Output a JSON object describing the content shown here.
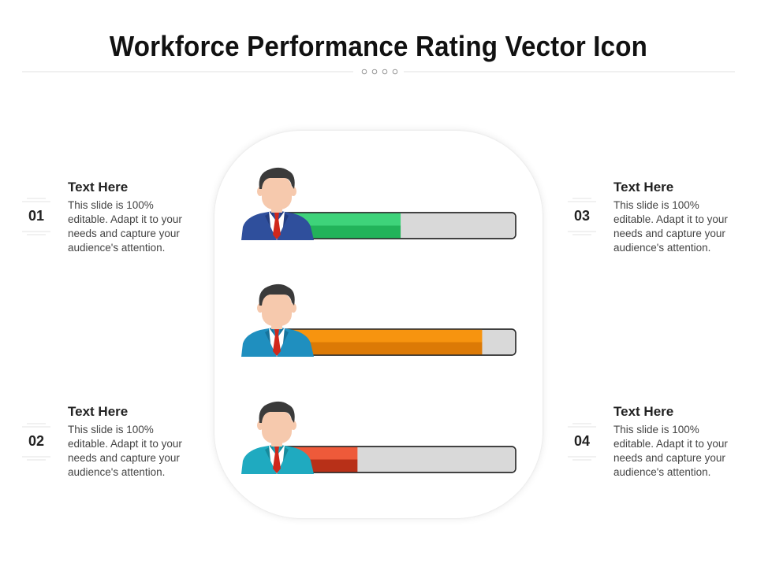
{
  "slide": {
    "title": "Workforce Performance Rating Vector Icon"
  },
  "items": [
    {
      "number": "01",
      "title": "Text Here",
      "desc": "This slide is 100% editable. Adapt it to your needs and capture your audience's attention."
    },
    {
      "number": "02",
      "title": "Text Here",
      "desc": "This slide is 100% editable. Adapt it to your needs and capture your audience's attention."
    },
    {
      "number": "03",
      "title": "Text Here",
      "desc": "This slide is 100% editable. Adapt it to your needs and capture your audience's attention."
    },
    {
      "number": "04",
      "title": "Text Here",
      "desc": "This slide is 100% editable. Adapt it to your needs and capture your audience's attention."
    }
  ],
  "ratings": [
    {
      "fill_fraction": 0.52,
      "color_top": "#3ed37a",
      "color_bottom": "#22b35a",
      "suit_color": "#2f4f9c",
      "suit_dark": "#233d80"
    },
    {
      "fill_fraction": 0.86,
      "color_top": "#f7940f",
      "color_bottom": "#dc7a06",
      "suit_color": "#1f8fbf",
      "suit_dark": "#17739c"
    },
    {
      "fill_fraction": 0.34,
      "color_top": "#ee5a3a",
      "color_bottom": "#b83018",
      "suit_color": "#1faac0",
      "suit_dark": "#168a9c"
    }
  ],
  "colors": {
    "track": "#d9d9d9",
    "hair": "#3a3a3a",
    "skin": "#f6c9ad",
    "tie": "#d0281b",
    "shirt": "#ffffff"
  },
  "icons": {
    "person": "businessman-icon"
  }
}
